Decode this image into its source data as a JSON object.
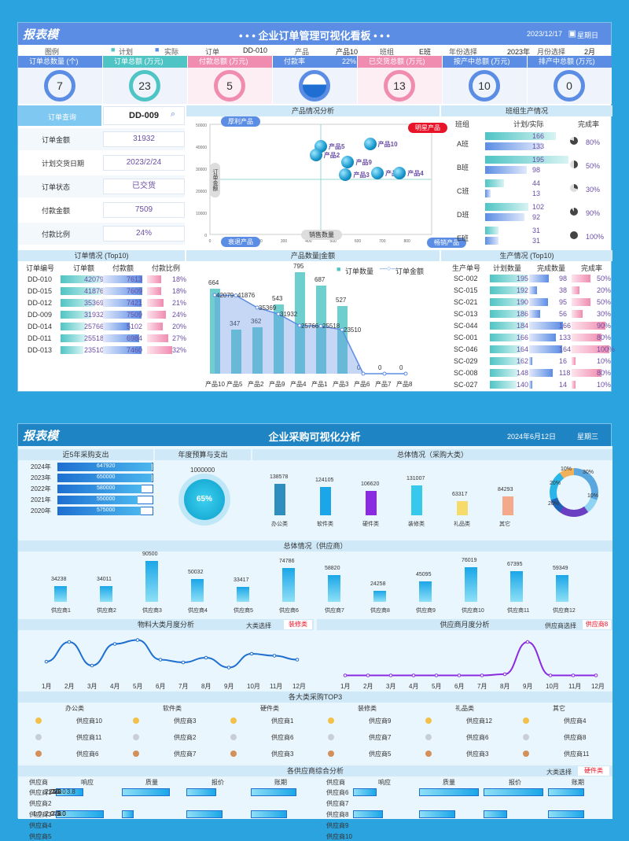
{
  "d1": {
    "logo": "报表模",
    "title": "• • • 企业订单管理可视化看板 • • •",
    "date": "2023/12/17",
    "weekday": "星期日",
    "filters": {
      "legend_label": "图例",
      "plan": "计划",
      "actual": "实际",
      "order_label": "订单",
      "order_val": "DD-010",
      "product_label": "产品",
      "product_val": "产品10",
      "team_label": "班组",
      "team_val": "E班",
      "year_label": "年份选择",
      "year_val": "2023年",
      "month_label": "月份选择",
      "month_val": "2月"
    },
    "kpis": [
      {
        "label": "订单总数量 (个)",
        "value": "7",
        "color": "#5b8de4"
      },
      {
        "label": "订单总额 (万元)",
        "value": "23",
        "color": "#4fc4c4"
      },
      {
        "label": "付款总额 (万元)",
        "value": "5",
        "color": "#f08cb0"
      },
      {
        "label": "付款率",
        "value": "22%",
        "color": "#5b8de4"
      },
      {
        "label": "已交货总额 (万元)",
        "value": "13",
        "color": "#f08cb0"
      },
      {
        "label": "按产中总额 (万元)",
        "value": "10",
        "color": "#5b8de4"
      },
      {
        "label": "排产中总额 (万元)",
        "value": "0",
        "color": "#5b8de4"
      }
    ],
    "query": {
      "label": "订单查询",
      "value": "DD-009",
      "rows": [
        {
          "label": "订单金额",
          "value": "31932"
        },
        {
          "label": "计划交货日期",
          "value": "2023/2/24"
        },
        {
          "label": "订单状态",
          "value": "已交货"
        },
        {
          "label": "付款金额",
          "value": "7509"
        },
        {
          "label": "付款比例",
          "value": "24%"
        }
      ]
    },
    "matrix": {
      "title": "产品情况分析",
      "tl": "厚利产品",
      "tr": "明星产品",
      "bl": "衰退产品",
      "br": "畅销产品",
      "xlabel": "销售数量",
      "ylabel": "订单金额",
      "yticks": [
        "50000",
        "40000",
        "30000",
        "20000",
        "10000",
        "0"
      ],
      "xticks": [
        "0",
        "100",
        "200",
        "300",
        "400",
        "500",
        "600",
        "700",
        "800",
        "900"
      ],
      "points": [
        {
          "name": "产品10",
          "x": 650,
          "y": 41000
        },
        {
          "name": "产品5",
          "x": 450,
          "y": 40000
        },
        {
          "name": "产品2",
          "x": 430,
          "y": 36000
        },
        {
          "name": "产品9",
          "x": 560,
          "y": 33000
        },
        {
          "name": "产品3",
          "x": 550,
          "y": 27000
        },
        {
          "name": "产品1",
          "x": 680,
          "y": 28000
        },
        {
          "name": "产品4",
          "x": 770,
          "y": 28000
        }
      ]
    },
    "team": {
      "title": "班组生产情况",
      "h1": "班组",
      "h2": "计划/实际",
      "h3": "完成率",
      "rows": [
        {
          "name": "A班",
          "plan": "166",
          "actual": "133",
          "pct": "80%",
          "p": 0.8
        },
        {
          "name": "B班",
          "plan": "195",
          "actual": "98",
          "pct": "50%",
          "p": 0.5
        },
        {
          "name": "C班",
          "plan": "44",
          "actual": "13",
          "pct": "30%",
          "p": 0.3
        },
        {
          "name": "D班",
          "plan": "102",
          "actual": "92",
          "pct": "90%",
          "p": 0.9
        },
        {
          "name": "E班",
          "plan": "31",
          "actual": "31",
          "pct": "100%",
          "p": 1
        }
      ]
    },
    "top10": {
      "title": "订单情况 (Top10)",
      "h": [
        "订单编号",
        "订单额",
        "付款额",
        "付款比例"
      ],
      "rows": [
        [
          "DD-010",
          "42079",
          "7613",
          "18%"
        ],
        [
          "DD-015",
          "41876",
          "7609",
          "18%"
        ],
        [
          "DD-012",
          "35369",
          "7421",
          "21%"
        ],
        [
          "DD-009",
          "31932",
          "7509",
          "24%"
        ],
        [
          "DD-014",
          "25766",
          "5102",
          "20%"
        ],
        [
          "DD-011",
          "25518",
          "6984",
          "27%"
        ],
        [
          "DD-013",
          "23510",
          "7460",
          "32%"
        ]
      ]
    },
    "combo": {
      "title": "产品数量|金额",
      "legend_a": "订单数量",
      "legend_b": "订单金额",
      "yticks": [
        "40000",
        "35000",
        "30000",
        "25000",
        "20000",
        "15000",
        "10000",
        "5000",
        "0"
      ],
      "cats": [
        "产品10",
        "产品5",
        "产品2",
        "产品9",
        "产品4",
        "产品1",
        "产品3",
        "产品6",
        "产品7",
        "产品8"
      ],
      "qty": [
        664,
        347,
        362,
        543,
        795,
        687,
        527,
        0,
        0,
        0
      ],
      "amt": [
        42079,
        41876,
        35369,
        31932,
        25766,
        25518,
        23510,
        0,
        0,
        0
      ],
      "qty_labels": [
        "664",
        "347",
        "362",
        "543",
        "795",
        "687",
        "527",
        "0",
        "0",
        "0"
      ],
      "amt_labels": [
        "42079",
        "41876",
        "35369",
        "31932",
        "25766",
        "25518",
        "23510",
        "",
        "",
        ""
      ]
    },
    "prod": {
      "title": "生产情况 (Top10)",
      "h": [
        "生产单号",
        "计划数量",
        "完成数量",
        "完成率"
      ],
      "rows": [
        [
          "SC-002",
          "195",
          "98",
          "50%"
        ],
        [
          "SC-015",
          "192",
          "38",
          "20%"
        ],
        [
          "SC-021",
          "190",
          "95",
          "50%"
        ],
        [
          "SC-013",
          "186",
          "56",
          "30%"
        ],
        [
          "SC-044",
          "184",
          "166",
          "90%"
        ],
        [
          "SC-001",
          "166",
          "133",
          "80%"
        ],
        [
          "SC-046",
          "164",
          "164",
          "100%"
        ],
        [
          "SC-029",
          "162",
          "16",
          "10%"
        ],
        [
          "SC-008",
          "148",
          "118",
          "80%"
        ],
        [
          "SC-027",
          "140",
          "14",
          "10%"
        ]
      ]
    }
  },
  "d2": {
    "logo": "报表模",
    "title": "企业采购可视化分析",
    "date": "2024年6月12日",
    "weekday": "星期三",
    "s1": {
      "title": "近5年采购支出",
      "rows": [
        {
          "year": "2024年",
          "val": "647920",
          "v": 647920
        },
        {
          "year": "2023年",
          "val": "650000",
          "v": 650000
        },
        {
          "year": "2022年",
          "val": "580000",
          "v": 580000
        },
        {
          "year": "2021年",
          "val": "550000",
          "v": 550000
        },
        {
          "year": "2020年",
          "val": "575000",
          "v": 575000
        }
      ]
    },
    "s2": {
      "title": "年度预算与支出",
      "budget": "1000000",
      "pct": "65%"
    },
    "s3": {
      "title": "总体情况（采购大类）",
      "cats": [
        {
          "n": "办公类",
          "v": 138578,
          "c": "#2e8fbf"
        },
        {
          "n": "软件类",
          "v": 124105,
          "c": "#1aa6e8"
        },
        {
          "n": "硬件类",
          "v": 106620,
          "c": "#8a2be2"
        },
        {
          "n": "装修类",
          "v": 131007,
          "c": "#36c9ec"
        },
        {
          "n": "礼品类",
          "v": 63317,
          "c": "#f5dc6a"
        },
        {
          "n": "其它",
          "v": 84293,
          "c": "#f4a98a"
        }
      ],
      "donut": [
        {
          "p": 0.3,
          "c": "#5aa6df",
          "l": "30%"
        },
        {
          "p": 0.1,
          "c": "#8fd3f2",
          "l": "10%"
        },
        {
          "p": 0.2,
          "c": "#6a3fc2",
          "l": "20%"
        },
        {
          "p": 0.1,
          "c": "#1e63b8",
          "l": ""
        },
        {
          "p": 0.2,
          "c": "#2ab5e8",
          "l": "20%"
        },
        {
          "p": 0.1,
          "c": "#f0b15a",
          "l": "10%"
        }
      ]
    },
    "s4": {
      "title": "总体情况（供应商）",
      "names": [
        "供应商1",
        "供应商2",
        "供应商3",
        "供应商4",
        "供应商5",
        "供应商6",
        "供应商7",
        "供应商8",
        "供应商9",
        "供应商10",
        "供应商11",
        "供应商12"
      ],
      "vals": [
        34238,
        34011,
        90500,
        50032,
        33417,
        74786,
        58820,
        24258,
        45095,
        76019,
        67395,
        59349
      ]
    },
    "s5": {
      "title": "物料大类月度分析",
      "sel_label": "大类选择",
      "sel": "装修类",
      "months": [
        "1月",
        "2月",
        "3月",
        "4月",
        "5月",
        "6月",
        "7月",
        "8月",
        "9月",
        "10月",
        "11月",
        "12月"
      ],
      "vals": [
        40,
        90,
        30,
        85,
        95,
        45,
        38,
        50,
        25,
        60,
        55,
        45
      ]
    },
    "s6": {
      "title": "供应商月度分析",
      "sel_label": "供应商选择",
      "sel": "供应商8",
      "months": [
        "1月",
        "2月",
        "3月",
        "4月",
        "5月",
        "6月",
        "7月",
        "8月",
        "9月",
        "10月",
        "11月",
        "12月"
      ],
      "vals": [
        5,
        5,
        5,
        5,
        5,
        5,
        5,
        8,
        90,
        5,
        5,
        5
      ]
    },
    "s7": {
      "title": "各大类采购TOP3",
      "cols": [
        {
          "h": "办公类",
          "items": [
            "供应商10",
            "供应商11",
            "供应商6"
          ]
        },
        {
          "h": "软件类",
          "items": [
            "供应商3",
            "供应商2",
            "供应商7"
          ]
        },
        {
          "h": "硬件类",
          "items": [
            "供应商1",
            "供应商6",
            "供应商3"
          ]
        },
        {
          "h": "装修类",
          "items": [
            "供应商9",
            "供应商7",
            "供应商5"
          ]
        },
        {
          "h": "礼品类",
          "items": [
            "供应商12",
            "供应商6",
            "供应商3"
          ]
        },
        {
          "h": "其它",
          "items": [
            "供应商4",
            "供应商8",
            "供应商11"
          ]
        }
      ]
    },
    "s8": {
      "title": "各供应商综合分析",
      "sel_label": "大类选择",
      "sel": "硬件类",
      "h": [
        "供应商",
        "响应",
        "质量",
        "报价",
        "账期"
      ],
      "left": [
        {
          "n": "供应商1",
          "r": 2.3,
          "q": 4.0,
          "p": 2.5,
          "a": 3.8
        },
        {
          "n": "供应商2",
          "r": 0,
          "q": 0,
          "p": 0,
          "a": 0
        },
        {
          "n": "供应商3",
          "r": 4.0,
          "q": 1.0,
          "p": 3.0,
          "a": 3.0
        },
        {
          "n": "供应商4",
          "r": 0,
          "q": 0,
          "p": 0,
          "a": 0
        },
        {
          "n": "供应商5",
          "r": 0,
          "q": 0,
          "p": 0,
          "a": 0
        }
      ],
      "right": [
        {
          "n": "供应商6",
          "r": 2.0,
          "q": 5.0,
          "p": 5.0,
          "a": 3.0
        },
        {
          "n": "供应商7",
          "r": 0,
          "q": 0,
          "p": 0,
          "a": 0
        },
        {
          "n": "供应商8",
          "r": 2.5,
          "q": 3.0,
          "p": 2.0,
          "a": 3.0
        },
        {
          "n": "供应商9",
          "r": 0,
          "q": 0,
          "p": 0,
          "a": 0
        },
        {
          "n": "供应商10",
          "r": 0,
          "q": 0,
          "p": 0,
          "a": 0
        }
      ]
    }
  }
}
